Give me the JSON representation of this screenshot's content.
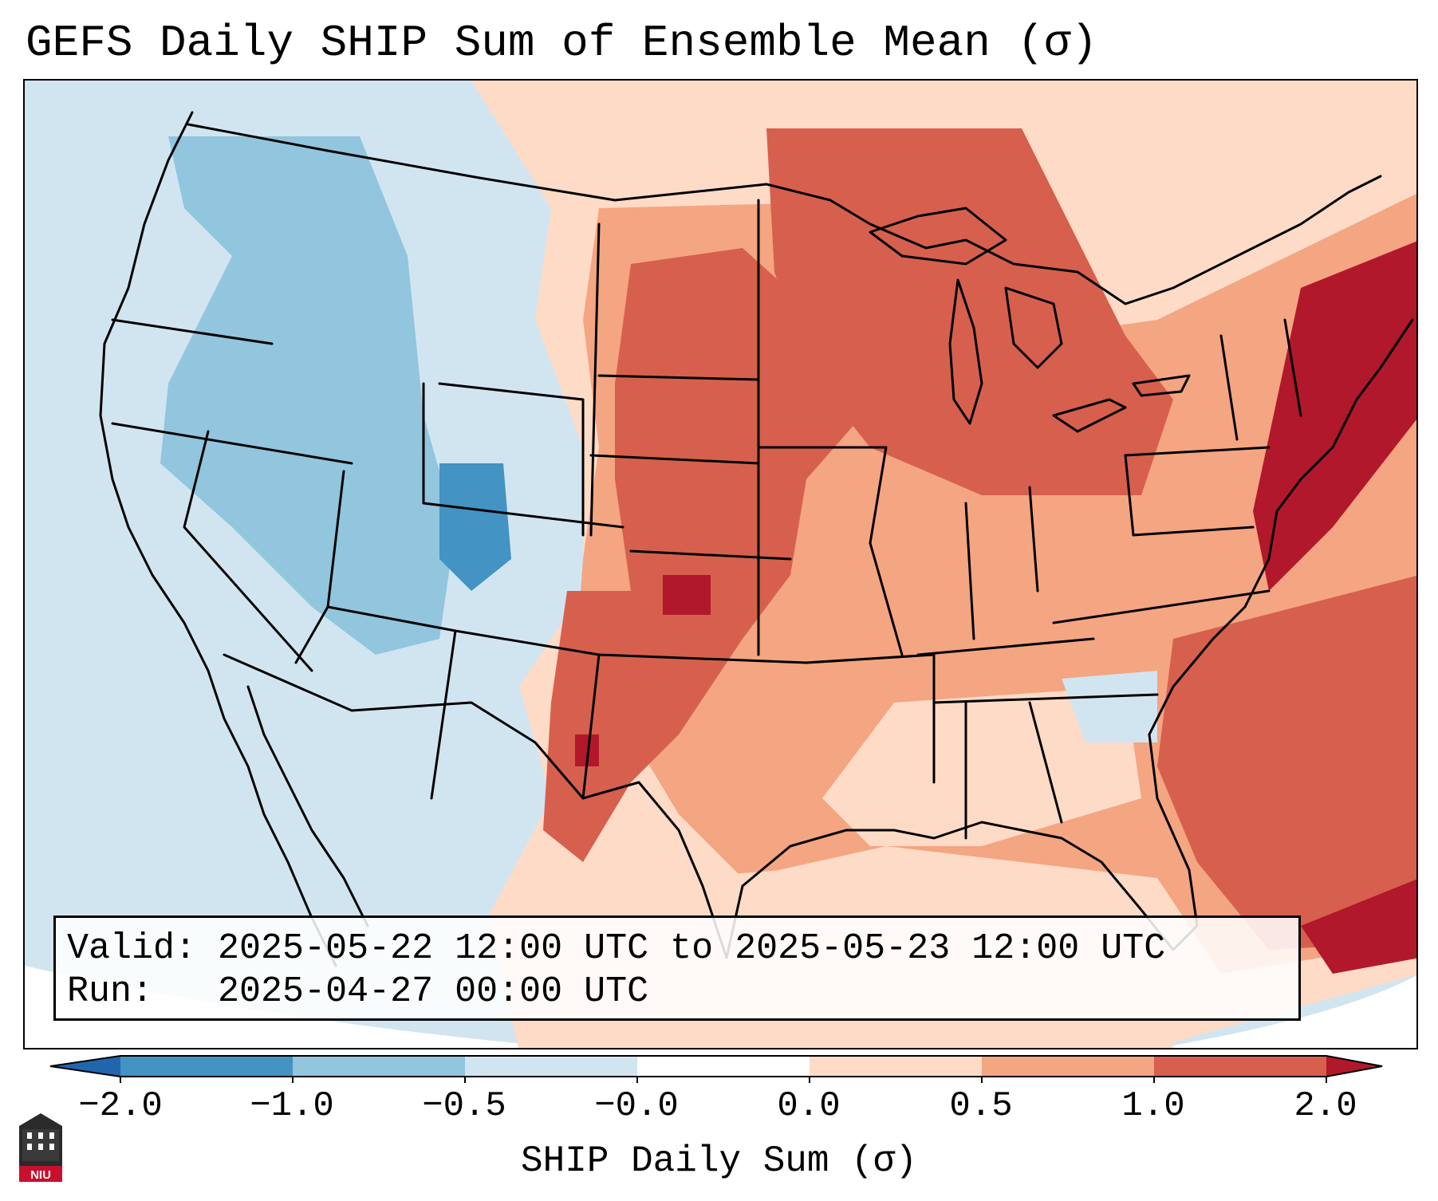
{
  "title": "GEFS Daily SHIP Sum of Ensemble Mean (σ)",
  "info": {
    "valid_label": "Valid:",
    "valid_value": "2025-05-22 12:00 UTC to 2025-05-23 12:00 UTC",
    "run_label": "Run:",
    "run_value": "2025-04-27 00:00 UTC"
  },
  "colorbar": {
    "label": "SHIP Daily Sum (σ)",
    "ticks": [
      "−2.0",
      "−1.0",
      "−0.5",
      "−0.0",
      "0.0",
      "0.5",
      "1.0",
      "2.0"
    ],
    "colors": [
      "#4393c3",
      "#92c5de",
      "#d1e5f0",
      "#ffffff",
      "#fddbc7",
      "#f4a582",
      "#d6604d",
      "#b2182b"
    ],
    "extend": "both"
  },
  "map": {
    "region": "CONUS",
    "background_color": "#d1e5f0",
    "features": [
      "state-borders",
      "country-borders",
      "coastlines",
      "great-lakes"
    ]
  },
  "logo": {
    "text": "NIU"
  }
}
